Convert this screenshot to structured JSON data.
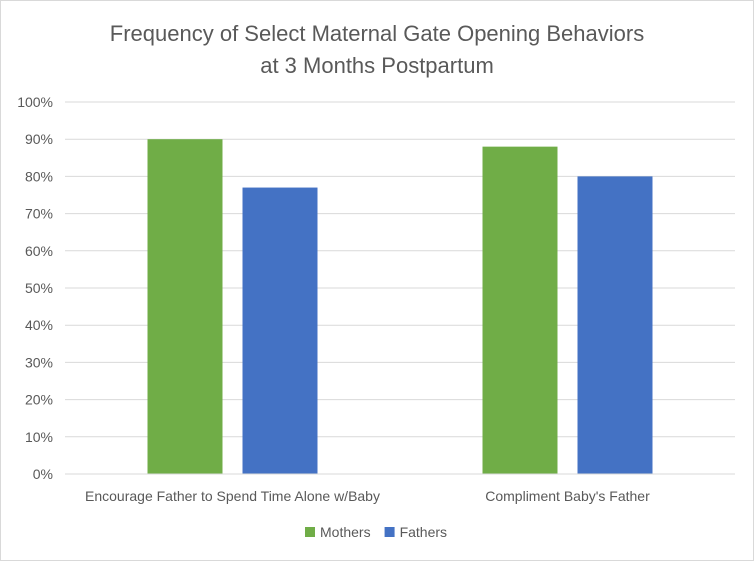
{
  "chart_data": {
    "type": "bar",
    "title_lines": [
      "Frequency of Select Maternal Gate Opening Behaviors",
      "at 3 Months Postpartum"
    ],
    "categories": [
      "Encourage Father to Spend Time Alone w/Baby",
      "Compliment Baby's Father"
    ],
    "series": [
      {
        "name": "Mothers",
        "values": [
          90,
          88
        ],
        "color": "#70ad47"
      },
      {
        "name": "Fathers",
        "values": [
          77,
          80
        ],
        "color": "#4472c4"
      }
    ],
    "ylim": [
      0,
      100
    ],
    "y_ticks": [
      0,
      10,
      20,
      30,
      40,
      50,
      60,
      70,
      80,
      90,
      100
    ],
    "y_tick_labels": [
      "0%",
      "10%",
      "20%",
      "30%",
      "40%",
      "50%",
      "60%",
      "70%",
      "80%",
      "90%",
      "100%"
    ],
    "grid": true,
    "legend_position": "bottom",
    "gridline_color": "#d9d9d9"
  }
}
